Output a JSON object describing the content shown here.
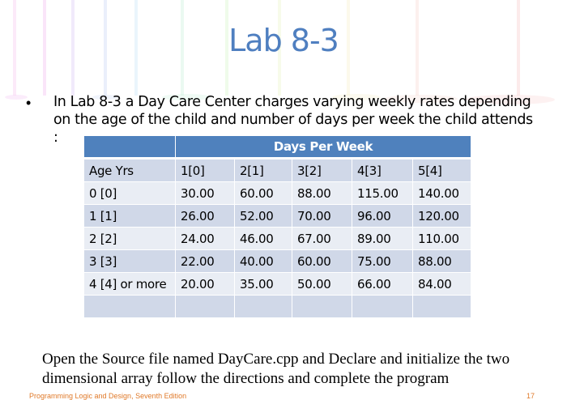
{
  "slide": {
    "title": "Lab 8-3",
    "intro": "In Lab 8-3 a Day Care Center charges varying weekly rates depending on the age of the child and number of days per week the child attends :",
    "instructions": "Open the Source file named DayCare.cpp and Declare and initialize the two dimensional array follow the directions and complete the program",
    "footer": "Programming Logic and Design, Seventh Edition",
    "page_number": "17"
  },
  "table": {
    "group_header": "Days Per Week",
    "columns": [
      "Age Yrs",
      "1[0]",
      "2[1]",
      "3[2]",
      "4[3]",
      "5[4]"
    ],
    "rows": [
      [
        "0 [0]",
        "30.00",
        "60.00",
        "88.00",
        "115.00",
        "140.00"
      ],
      [
        "1 [1]",
        "26.00",
        "52.00",
        "70.00",
        "96.00",
        "120.00"
      ],
      [
        "2 [2]",
        "24.00",
        "46.00",
        "67.00",
        "89.00",
        "110.00"
      ],
      [
        "3 [3]",
        "22.00",
        "40.00",
        "60.00",
        "75.00",
        "88.00"
      ],
      [
        "4 [4] or more",
        "20.00",
        "35.00",
        "50.00",
        "66.00",
        "84.00"
      ]
    ]
  },
  "colors": {
    "title": "#4f7fc0",
    "header": "#4f81bd",
    "row_dark": "#d0d8e8",
    "row_light": "#e9edf4"
  }
}
